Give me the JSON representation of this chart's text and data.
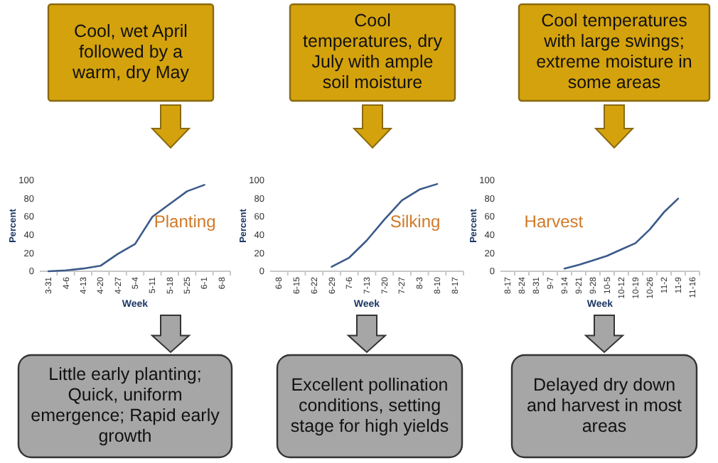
{
  "chart_data": [
    {
      "type": "line",
      "title": "Planting",
      "xlabel": "Week",
      "ylabel": "Percent",
      "categories": [
        "3-31",
        "4-6",
        "4-13",
        "4-20",
        "4-27",
        "5-4",
        "5-11",
        "5-18",
        "5-25",
        "6-1",
        "6-8"
      ],
      "series": [
        {
          "color": "#3b5a8a",
          "values": [
            0,
            1,
            3,
            6,
            19,
            30,
            60,
            74,
            88,
            95,
            null
          ]
        }
      ],
      "ylim": [
        0,
        100
      ],
      "yticks": [
        0,
        20,
        40,
        60,
        80,
        100
      ],
      "annotations": [
        "Cool, wet April followed by a warm, dry May",
        "Little early planting; Quick, uniform emergence; Rapid early growth"
      ]
    },
    {
      "type": "line",
      "title": "Silking",
      "xlabel": "Week",
      "ylabel": "Percent",
      "categories": [
        "6-8",
        "6-15",
        "6-22",
        "6-29",
        "7-6",
        "7-13",
        "7-20",
        "7-27",
        "8-3",
        "8-10",
        "8-17"
      ],
      "series": [
        {
          "color": "#3b5a8a",
          "values": [
            null,
            null,
            null,
            5,
            15,
            34,
            57,
            78,
            90,
            96,
            null
          ]
        }
      ],
      "ylim": [
        0,
        100
      ],
      "yticks": [
        0,
        20,
        40,
        60,
        80,
        100
      ],
      "annotations": [
        "Cool temperatures, dry July with ample soil moisture",
        "Excellent pollination conditions, setting stage for high yields"
      ]
    },
    {
      "type": "line",
      "title": "Harvest",
      "xlabel": "Week",
      "ylabel": "Percent",
      "categories": [
        "8-17",
        "8-24",
        "8-31",
        "9-7",
        "9-14",
        "9-21",
        "9-28",
        "10-5",
        "10-12",
        "10-19",
        "10-26",
        "11-2",
        "11-9",
        "11-16"
      ],
      "series": [
        {
          "color": "#3b5a8a",
          "values": [
            null,
            null,
            null,
            null,
            3,
            7,
            12,
            17,
            24,
            31,
            46,
            65,
            80,
            null
          ]
        }
      ],
      "ylim": [
        0,
        100
      ],
      "yticks": [
        0,
        20,
        40,
        60,
        80,
        100
      ],
      "annotations": [
        "Cool temperatures with large swings; extreme moisture in some areas",
        "Delayed dry down and harvest in most areas"
      ]
    }
  ]
}
